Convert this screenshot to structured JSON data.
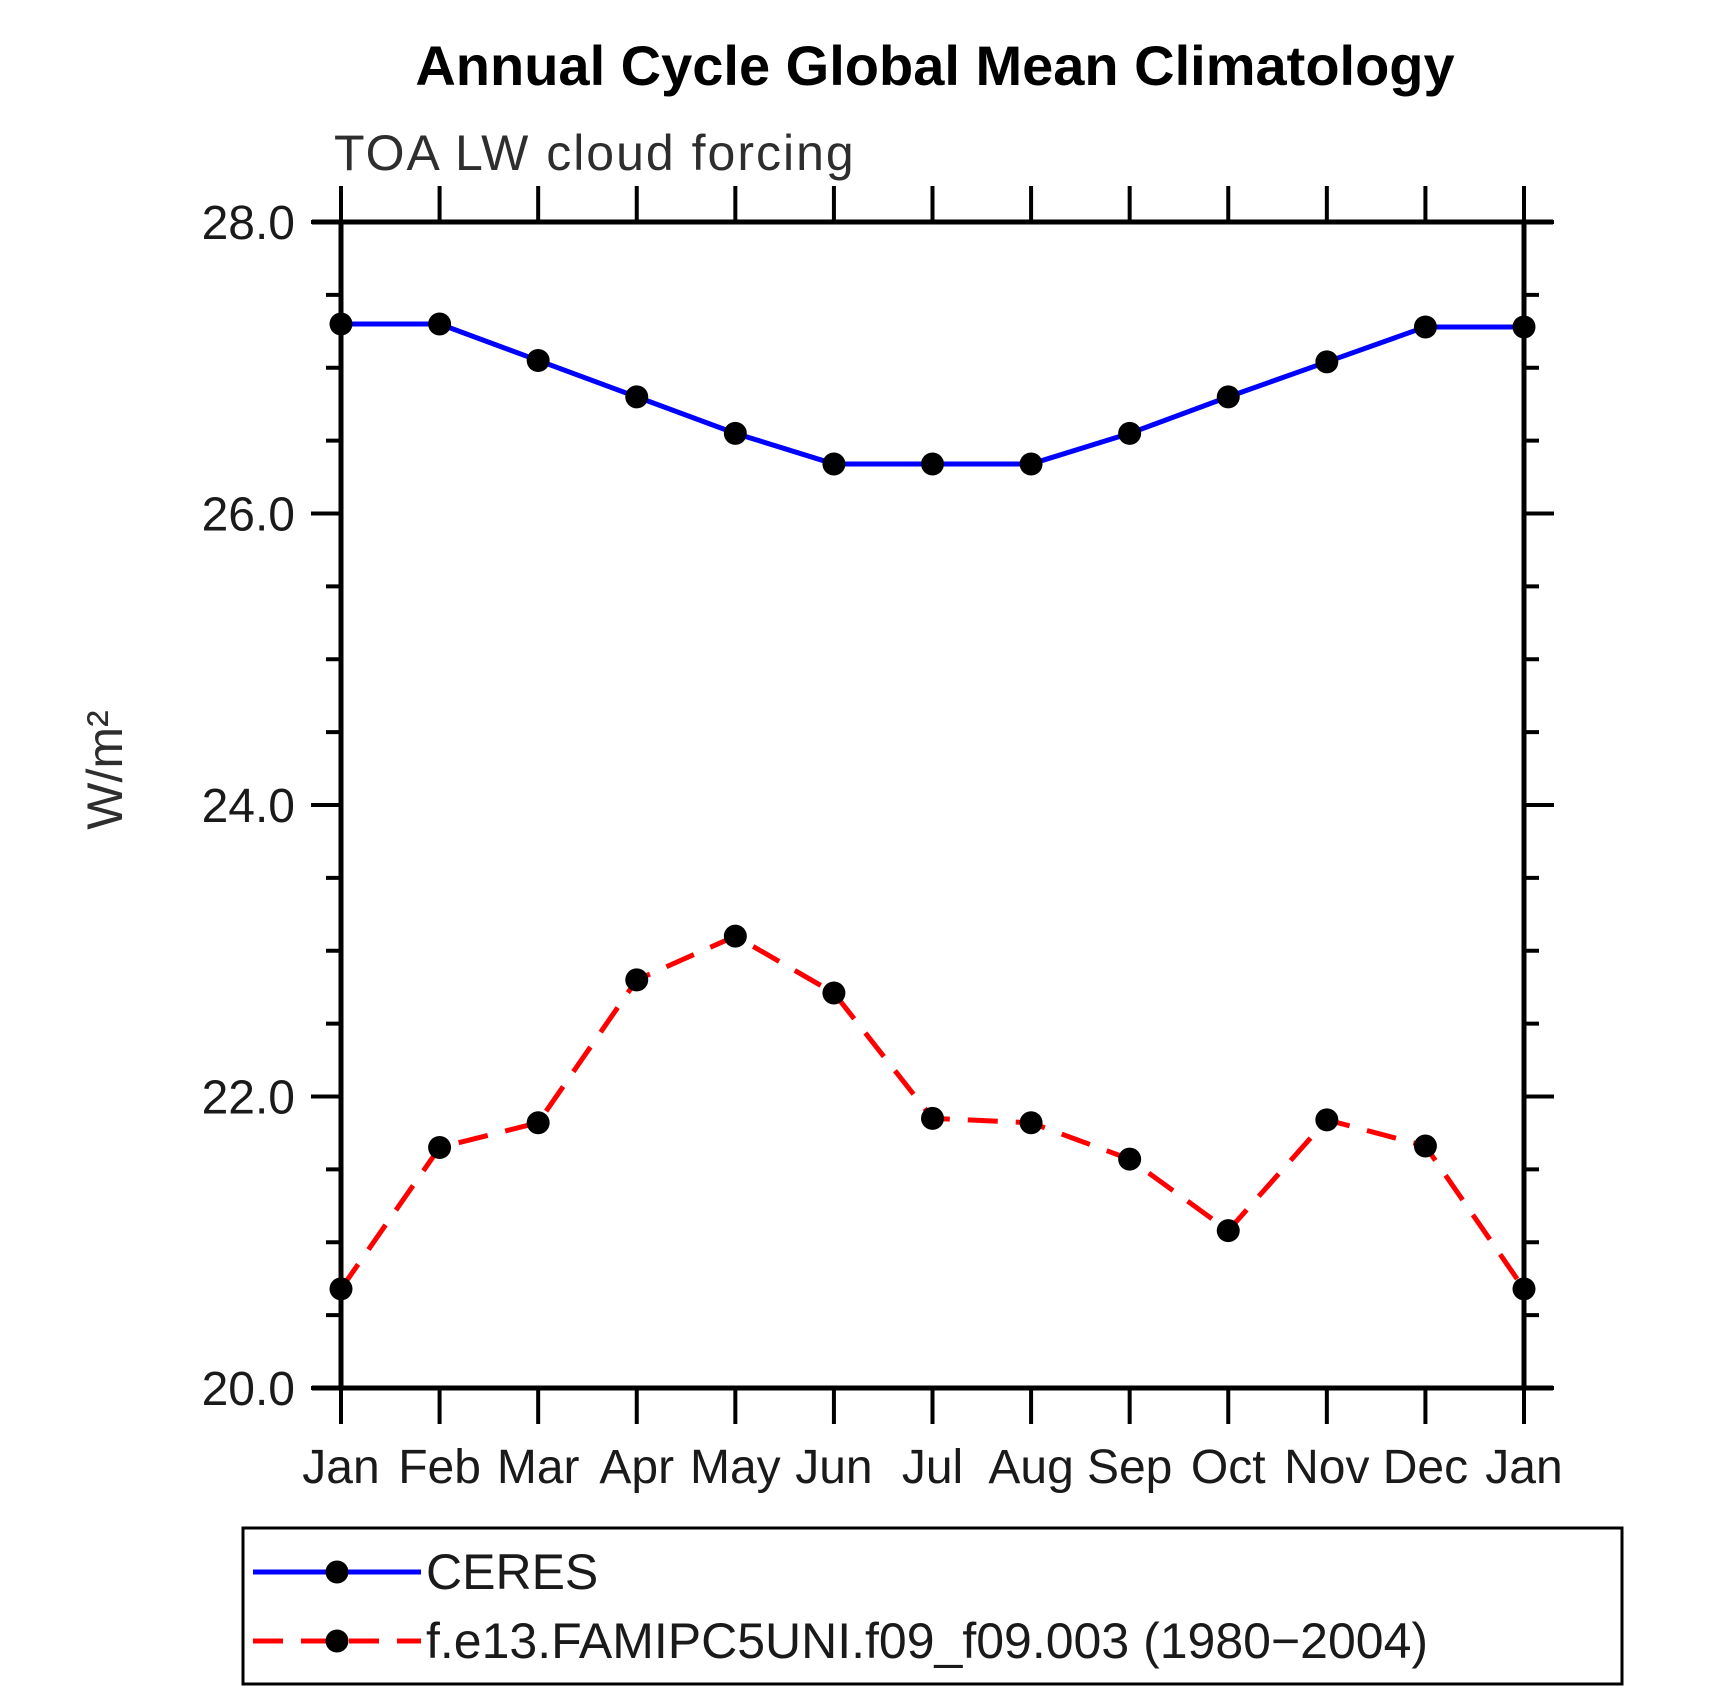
{
  "chart_data": {
    "type": "line",
    "title": "Annual Cycle Global Mean Climatology",
    "subtitle": "TOA LW cloud forcing",
    "ylabel": "W/m²",
    "xlabel": "",
    "categories": [
      "Jan",
      "Feb",
      "Mar",
      "Apr",
      "May",
      "Jun",
      "Jul",
      "Aug",
      "Sep",
      "Oct",
      "Nov",
      "Dec",
      "Jan"
    ],
    "ylim": [
      20.0,
      28.0
    ],
    "y_major_ticks": [
      28.0,
      26.0,
      24.0,
      22.0,
      20.0
    ],
    "y_major_tick_labels": [
      "28.0",
      "26.0",
      "24.0",
      "22.0",
      "20.0"
    ],
    "y_minor_tick_step": 0.5,
    "grid": false,
    "legend_position": "bottom",
    "marker": {
      "shape": "circle",
      "color": "#000000"
    },
    "series": [
      {
        "name": "CERES",
        "line_color": "#0000ff",
        "line_style": "solid",
        "values": [
          27.3,
          27.3,
          27.05,
          26.8,
          26.55,
          26.34,
          26.34,
          26.34,
          26.55,
          26.8,
          27.04,
          27.28,
          27.28
        ]
      },
      {
        "name": "f.e13.FAMIPC5UNI.f09_f09.003 (1980−2004)",
        "line_color": "#ff0000",
        "line_style": "dashed",
        "values": [
          20.68,
          21.65,
          21.82,
          22.8,
          23.1,
          22.71,
          21.85,
          21.82,
          21.57,
          21.08,
          21.84,
          21.66,
          20.68
        ]
      }
    ]
  }
}
